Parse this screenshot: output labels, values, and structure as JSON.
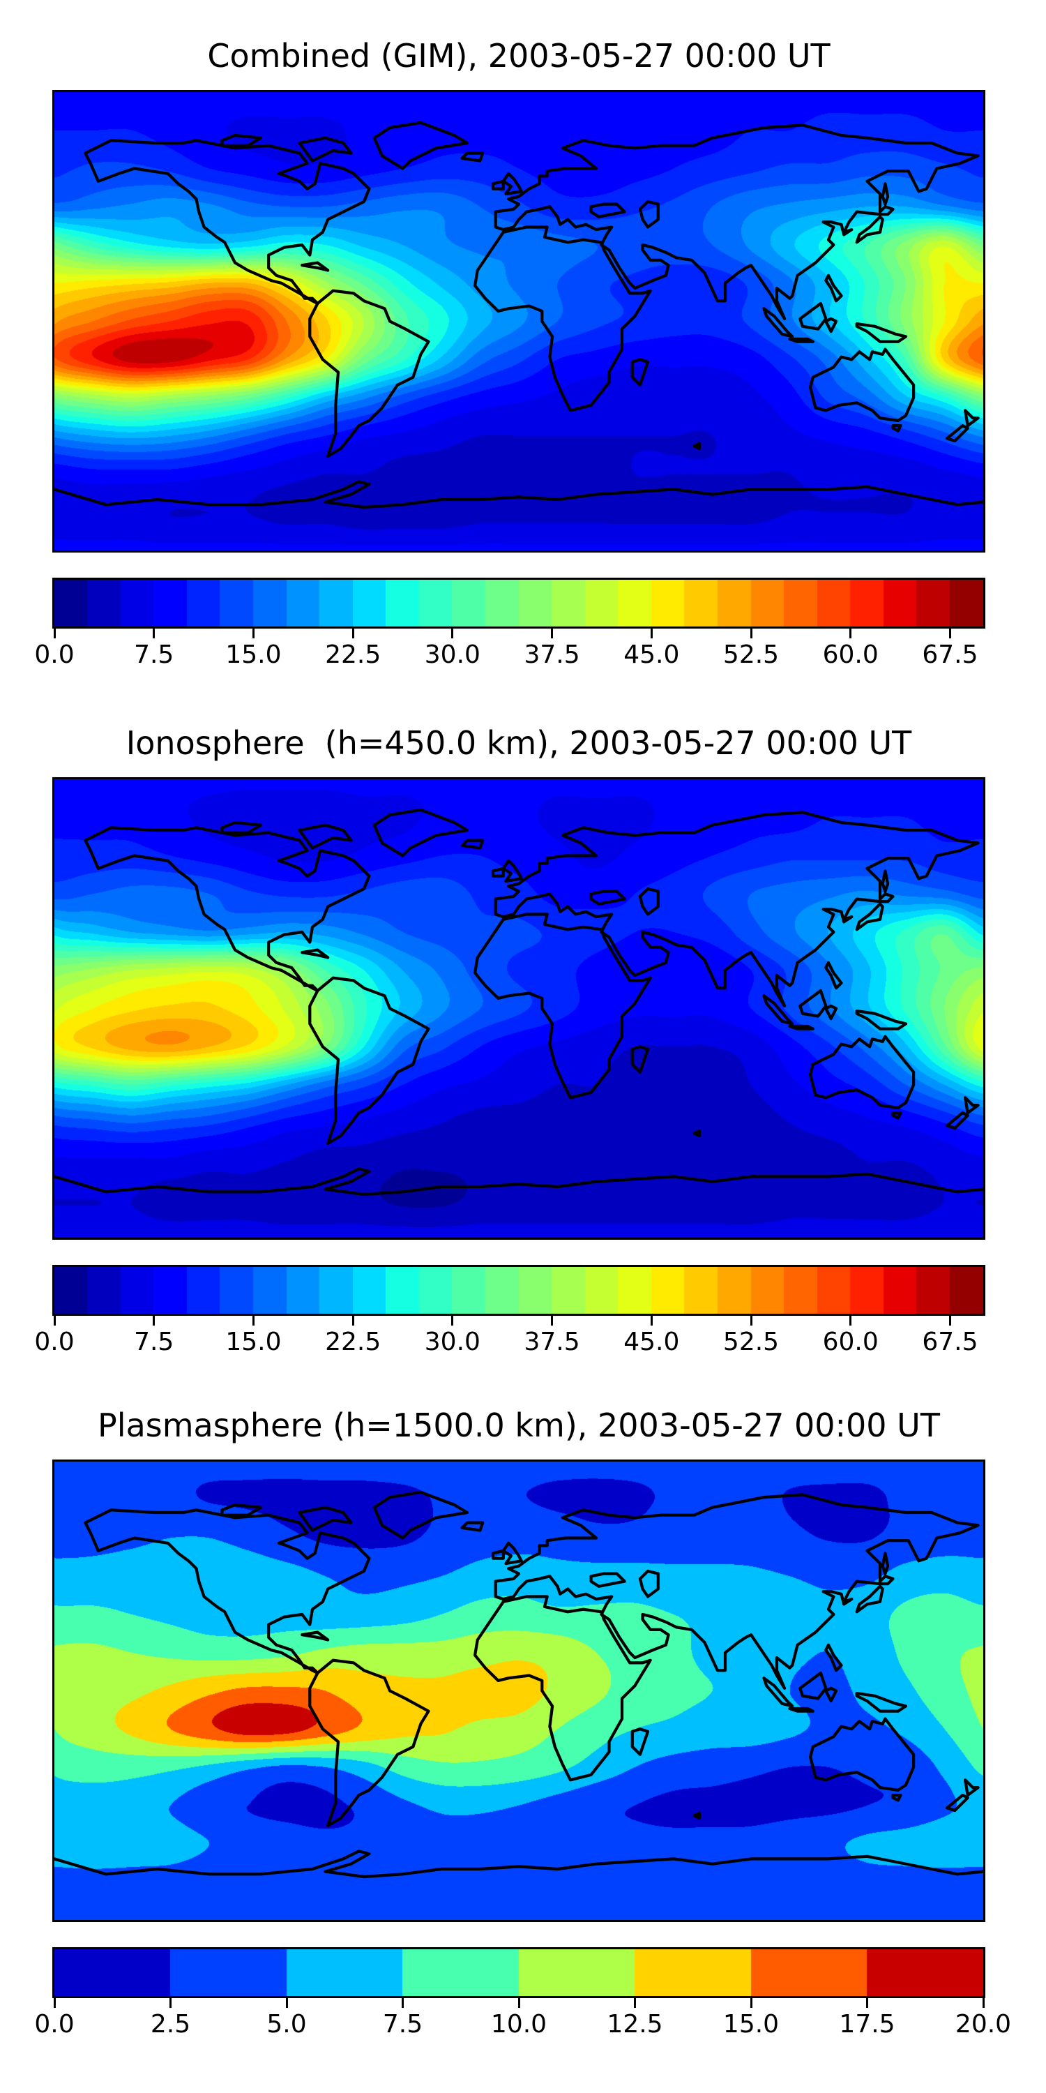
{
  "chart_data": [
    {
      "type": "heatmap",
      "title": "Combined (GIM), 2003-05-27 00:00 UT",
      "colormap": "jet",
      "vmin": 0,
      "vmax": 70,
      "level_step": 2.5,
      "n_levels": 28,
      "colorbar_tick_values": [
        0,
        7.5,
        15,
        22.5,
        30,
        37.5,
        45,
        52.5,
        60,
        67.5
      ],
      "colorbar_tick_labels": [
        "0.0",
        "7.5",
        "15.0",
        "22.5",
        "30.0",
        "37.5",
        "45.0",
        "52.5",
        "60.0",
        "67.5"
      ],
      "lon_range": [
        -180,
        180
      ],
      "lat_range": [
        -90,
        90
      ],
      "grid_lon_step": 15,
      "grid_lat_step": 15,
      "values": [
        [
          9,
          9,
          9,
          9,
          9,
          9,
          9,
          9,
          9,
          9,
          9,
          9,
          9,
          9,
          9,
          9,
          9,
          9,
          9,
          9,
          9,
          9,
          9,
          9,
          9
        ],
        [
          10,
          10,
          10,
          9,
          8,
          7,
          7,
          7,
          8,
          8,
          9,
          9,
          9,
          8,
          8,
          8,
          9,
          9,
          10,
          10,
          11,
          11,
          11,
          10,
          10
        ],
        [
          12,
          13,
          13,
          12,
          10,
          9,
          8,
          8,
          9,
          10,
          11,
          11,
          10,
          9,
          8,
          9,
          10,
          11,
          12,
          13,
          13,
          14,
          14,
          13,
          12
        ],
        [
          16,
          17,
          18,
          19,
          18,
          16,
          15,
          15,
          16,
          17,
          17,
          15,
          13,
          11,
          11,
          12,
          13,
          15,
          17,
          18,
          19,
          20,
          20,
          18,
          16
        ],
        [
          34,
          29,
          26,
          24,
          23,
          24,
          26,
          25,
          22,
          20,
          18,
          17,
          17,
          16,
          15,
          14,
          14,
          15,
          18,
          22,
          26,
          30,
          36,
          42,
          34
        ],
        [
          45,
          46,
          47,
          48,
          50,
          50,
          45,
          38,
          32,
          26,
          22,
          19,
          17,
          15,
          13,
          12,
          11,
          11,
          13,
          17,
          22,
          28,
          35,
          45,
          45
        ],
        [
          52,
          55,
          58,
          60,
          62,
          62,
          55,
          48,
          40,
          31,
          26,
          21,
          18,
          15,
          13,
          12,
          11,
          11,
          13,
          17,
          22,
          28,
          36,
          45,
          52
        ],
        [
          57,
          62,
          66,
          66,
          63,
          60,
          52,
          45,
          34,
          28,
          22,
          16,
          13,
          10,
          9,
          8,
          8,
          8,
          9,
          12,
          16,
          22,
          30,
          48,
          57
        ],
        [
          35,
          38,
          40,
          38,
          36,
          33,
          28,
          22,
          18,
          14,
          11,
          9,
          8,
          7,
          6,
          6,
          6,
          6,
          7,
          9,
          13,
          16,
          22,
          27,
          35
        ],
        [
          18,
          20,
          21,
          20,
          18,
          15,
          12,
          10,
          8,
          7,
          6,
          5,
          5,
          5,
          5,
          5,
          5,
          5,
          6,
          7,
          8,
          9,
          11,
          14,
          18
        ],
        [
          8,
          9,
          9,
          9,
          8,
          7,
          6,
          5,
          5,
          4,
          4,
          4,
          4,
          4,
          4,
          5,
          5,
          5,
          5,
          5,
          6,
          6,
          6,
          7,
          8
        ],
        [
          6,
          6,
          6,
          5,
          5,
          5,
          4,
          4,
          3,
          3,
          3,
          4,
          4,
          4,
          4,
          4,
          4,
          4,
          4,
          5,
          5,
          5,
          5,
          6,
          6
        ],
        [
          8,
          8,
          8,
          8,
          8,
          8,
          8,
          8,
          8,
          8,
          8,
          8,
          8,
          8,
          8,
          8,
          8,
          8,
          8,
          8,
          8,
          8,
          8,
          8,
          8
        ]
      ]
    },
    {
      "type": "heatmap",
      "title": "Ionosphere  (h=450.0 km), 2003-05-27 00:00 UT",
      "colormap": "jet",
      "vmin": 0,
      "vmax": 70,
      "level_step": 2.5,
      "n_levels": 28,
      "colorbar_tick_values": [
        0,
        7.5,
        15,
        22.5,
        30,
        37.5,
        45,
        52.5,
        60,
        67.5
      ],
      "colorbar_tick_labels": [
        "0.0",
        "7.5",
        "15.0",
        "22.5",
        "30.0",
        "37.5",
        "45.0",
        "52.5",
        "60.0",
        "67.5"
      ],
      "lon_range": [
        -180,
        180
      ],
      "lat_range": [
        -90,
        90
      ],
      "grid_lon_step": 15,
      "grid_lat_step": 15,
      "values": [
        [
          8,
          8,
          8,
          8,
          8,
          8,
          8,
          8,
          8,
          8,
          8,
          8,
          8,
          8,
          8,
          8,
          8,
          8,
          8,
          8,
          8,
          8,
          8,
          8,
          8
        ],
        [
          9,
          9,
          9,
          8,
          7,
          6,
          6,
          6,
          7,
          7,
          8,
          8,
          8,
          7,
          7,
          7,
          8,
          8,
          9,
          9,
          10,
          10,
          10,
          9,
          9
        ],
        [
          11,
          11,
          11,
          10,
          9,
          8,
          7,
          7,
          8,
          9,
          10,
          10,
          9,
          8,
          7,
          8,
          9,
          10,
          11,
          12,
          12,
          12,
          12,
          11,
          11
        ],
        [
          14,
          15,
          16,
          16,
          15,
          13,
          12,
          12,
          13,
          14,
          14,
          12,
          11,
          9,
          9,
          10,
          11,
          13,
          15,
          16,
          17,
          18,
          17,
          16,
          14
        ],
        [
          24,
          22,
          20,
          19,
          18,
          19,
          20,
          19,
          17,
          15,
          14,
          13,
          13,
          12,
          11,
          10,
          10,
          11,
          14,
          17,
          20,
          24,
          28,
          32,
          24
        ],
        [
          36,
          38,
          40,
          41,
          42,
          41,
          37,
          30,
          25,
          20,
          17,
          14,
          12,
          11,
          9,
          8,
          8,
          8,
          10,
          13,
          17,
          22,
          28,
          33,
          36
        ],
        [
          42,
          45,
          47,
          48,
          48,
          46,
          42,
          36,
          28,
          22,
          18,
          15,
          13,
          11,
          9,
          8,
          8,
          8,
          10,
          13,
          17,
          22,
          28,
          35,
          42
        ],
        [
          44,
          48,
          51,
          52,
          50,
          47,
          42,
          35,
          25,
          16,
          13,
          10,
          8,
          7,
          6,
          5,
          5,
          5,
          6,
          9,
          12,
          16,
          22,
          32,
          44
        ],
        [
          26,
          28,
          30,
          28,
          26,
          24,
          20,
          16,
          13,
          10,
          8,
          7,
          6,
          5,
          5,
          4,
          4,
          4,
          5,
          7,
          9,
          11,
          15,
          20,
          26
        ],
        [
          13,
          14,
          15,
          14,
          13,
          11,
          9,
          8,
          7,
          6,
          5,
          4,
          4,
          4,
          4,
          3,
          3,
          4,
          4,
          5,
          6,
          7,
          8,
          10,
          13
        ],
        [
          7,
          7,
          7,
          7,
          6,
          6,
          5,
          4,
          4,
          3,
          3,
          3,
          3,
          3,
          3,
          3,
          3,
          3,
          4,
          4,
          4,
          5,
          5,
          6,
          7
        ],
        [
          5,
          5,
          5,
          4,
          4,
          4,
          3,
          3,
          3,
          2,
          2,
          3,
          3,
          3,
          3,
          3,
          3,
          3,
          3,
          4,
          4,
          4,
          4,
          5,
          5
        ],
        [
          6,
          6,
          6,
          6,
          6,
          6,
          6,
          6,
          6,
          6,
          6,
          6,
          6,
          6,
          6,
          6,
          6,
          6,
          6,
          6,
          6,
          6,
          6,
          6,
          6
        ]
      ]
    },
    {
      "type": "heatmap",
      "title": "Plasmasphere (h=1500.0 km), 2003-05-27 00:00 UT",
      "colormap": "jet",
      "vmin": 0,
      "vmax": 20,
      "level_step": 2.5,
      "n_levels": 8,
      "colorbar_tick_values": [
        0,
        2.5,
        5,
        7.5,
        10,
        12.5,
        15,
        17.5,
        20
      ],
      "colorbar_tick_labels": [
        "0.0",
        "2.5",
        "5.0",
        "7.5",
        "10.0",
        "12.5",
        "15.0",
        "17.5",
        "20.0"
      ],
      "lon_range": [
        -180,
        180
      ],
      "lat_range": [
        -90,
        90
      ],
      "grid_lon_step": 15,
      "grid_lat_step": 15,
      "values": [
        [
          3,
          3,
          3,
          3,
          3,
          3,
          3,
          3,
          3,
          3,
          3,
          3,
          3,
          3,
          3,
          3,
          3,
          3,
          3,
          3,
          3,
          3,
          3,
          3,
          3
        ],
        [
          3,
          3,
          3,
          3,
          2.4,
          2.2,
          2,
          2,
          2,
          2.2,
          2.6,
          2.8,
          2.6,
          2.2,
          2,
          2.2,
          2.8,
          3,
          3,
          2.4,
          2.2,
          2.2,
          2.8,
          3,
          3
        ],
        [
          4,
          4.2,
          4.5,
          5,
          5,
          4.2,
          3,
          2.2,
          2,
          2.2,
          3,
          3.8,
          4,
          3.8,
          3.2,
          3.2,
          3.8,
          4,
          3.8,
          3,
          2.4,
          2.4,
          3.2,
          3.8,
          4
        ],
        [
          6,
          6,
          6.3,
          6.5,
          6.5,
          6.5,
          6,
          5,
          4.4,
          4.5,
          5,
          6,
          6.5,
          6,
          6,
          6,
          5.6,
          5.5,
          5.4,
          5,
          4.5,
          4.5,
          6,
          6.5,
          6
        ],
        [
          8,
          8,
          7.5,
          7,
          6.5,
          6.5,
          6.5,
          6,
          6,
          6.5,
          7.5,
          8.5,
          8.5,
          8,
          8,
          8,
          7.5,
          7,
          6.5,
          6,
          5.5,
          6.5,
          8,
          8.5,
          8
        ],
        [
          10.3,
          10.5,
          10,
          9.5,
          9,
          9,
          9.5,
          10.5,
          11,
          11,
          11,
          11.5,
          12,
          11.5,
          10,
          9,
          8,
          7,
          6.5,
          5.5,
          5,
          6,
          8,
          9.5,
          10.3
        ],
        [
          10.6,
          11.5,
          12,
          13,
          14.5,
          15.5,
          15.5,
          15,
          13.5,
          13,
          13,
          13.5,
          13.5,
          12,
          10.5,
          9,
          8,
          7.5,
          7,
          5,
          4.5,
          5.5,
          7,
          9,
          10.6
        ],
        [
          10,
          11.5,
          13,
          15,
          17,
          18.8,
          18.5,
          16.5,
          14.5,
          13.2,
          12.8,
          12,
          11.5,
          10,
          8.5,
          7.5,
          7,
          6.5,
          6.5,
          5.5,
          4.5,
          4.5,
          5.5,
          7.5,
          10
        ],
        [
          8,
          8.5,
          8.5,
          8,
          7,
          5.5,
          4.5,
          5,
          6.5,
          8.5,
          9.5,
          9.5,
          9,
          8,
          6.5,
          5,
          4,
          3.5,
          3,
          2.5,
          2.5,
          3,
          3.5,
          5.5,
          8
        ],
        [
          6,
          6.5,
          6,
          5,
          3.5,
          2.5,
          2,
          2,
          3,
          4.5,
          5.5,
          5.5,
          5,
          4,
          3,
          2.5,
          2,
          2,
          2,
          2,
          2,
          2.5,
          3,
          4.5,
          6
        ],
        [
          6.5,
          7,
          6.5,
          6,
          5,
          4,
          3.5,
          3,
          3,
          3.5,
          4,
          4,
          3.5,
          3,
          3,
          3,
          3,
          3,
          3,
          3.5,
          4.5,
          5.5,
          6,
          6.5,
          6.5
        ],
        [
          4,
          4,
          4,
          4,
          3.5,
          3,
          3,
          3,
          3,
          3,
          3,
          3,
          3,
          3,
          3,
          3,
          3,
          3,
          3,
          3,
          3.5,
          4,
          4,
          4,
          4
        ],
        [
          3,
          3,
          3,
          3,
          3,
          3,
          3,
          3,
          3,
          3,
          3,
          3,
          3,
          3,
          3,
          3,
          3,
          3,
          3,
          3,
          3,
          3,
          3,
          3,
          3
        ]
      ]
    }
  ]
}
